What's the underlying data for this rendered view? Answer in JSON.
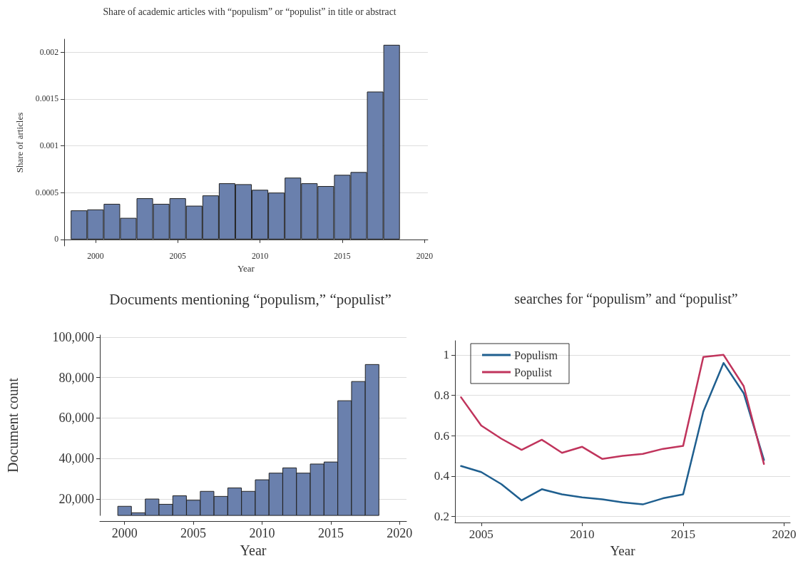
{
  "chart_data": [
    {
      "type": "bar",
      "title": "Share of academic articles with “populism” or “populist” in title or abstract",
      "xlabel": "Year",
      "ylabel": "Share of articles",
      "x": [
        1999,
        2000,
        2001,
        2002,
        2003,
        2004,
        2005,
        2006,
        2007,
        2008,
        2009,
        2010,
        2011,
        2012,
        2013,
        2014,
        2015,
        2016,
        2017,
        2018
      ],
      "values": [
        0.00031,
        0.00032,
        0.00038,
        0.00023,
        0.00044,
        0.00038,
        0.00044,
        0.00036,
        0.00047,
        0.0006,
        0.00059,
        0.00053,
        0.0005,
        0.00066,
        0.0006,
        0.00057,
        0.00069,
        0.00072,
        0.00158,
        0.00208
      ],
      "color": "#6a80ad",
      "xlim": [
        1998.1,
        2020.2
      ],
      "xticks": [
        2000,
        2005,
        2010,
        2015,
        2020
      ],
      "ylim": [
        -7e-05,
        0.00214
      ],
      "yticks": [
        0,
        0.0005,
        0.001,
        0.0015,
        0.002
      ],
      "grid": "y"
    },
    {
      "type": "bar",
      "title": "Documents mentioning “populism,” “populist”",
      "xlabel": "Year",
      "ylabel": "Document count",
      "x": [
        2000,
        2001,
        2002,
        2003,
        2004,
        2005,
        2006,
        2007,
        2008,
        2009,
        2010,
        2011,
        2012,
        2013,
        2014,
        2015,
        2016,
        2017,
        2018
      ],
      "values": [
        16500,
        13300,
        20100,
        17500,
        21700,
        19500,
        23900,
        21400,
        25600,
        23900,
        29600,
        32900,
        35500,
        32900,
        37400,
        38400,
        68700,
        78200,
        86600
      ],
      "color": "#6a80ad",
      "xlim": [
        1998.2,
        2020.5
      ],
      "xticks": [
        2000,
        2005,
        2010,
        2015,
        2020
      ],
      "ylim": [
        11800,
        101000
      ],
      "yticks": [
        {
          "value": 20000,
          "label": "20,000"
        },
        {
          "value": 40000,
          "label": "40,000"
        },
        {
          "value": 60000,
          "label": "60,000"
        },
        {
          "value": 80000,
          "label": "80,000"
        },
        {
          "value": 100000,
          "label": "100,000"
        }
      ],
      "grid": "y"
    },
    {
      "type": "line",
      "title": "searches for “populism” and “populist”",
      "xlabel": "Year",
      "x": [
        2004,
        2005,
        2006,
        2007,
        2008,
        2009,
        2010,
        2011,
        2012,
        2013,
        2014,
        2015,
        2016,
        2017,
        2018,
        2019
      ],
      "series": [
        {
          "name": "Populism",
          "color": "#1f5f8f",
          "values": [
            0.45,
            0.42,
            0.36,
            0.28,
            0.335,
            0.31,
            0.295,
            0.285,
            0.27,
            0.26,
            0.29,
            0.31,
            0.72,
            0.96,
            0.81,
            0.48
          ]
        },
        {
          "name": "Populist",
          "color": "#c0345c",
          "values": [
            0.79,
            0.65,
            0.585,
            0.53,
            0.58,
            0.515,
            0.545,
            0.485,
            0.5,
            0.51,
            0.535,
            0.55,
            0.99,
            1.0,
            0.845,
            0.46
          ]
        }
      ],
      "xlim": [
        2003.7,
        2020.3
      ],
      "xticks": [
        2005,
        2010,
        2015,
        2020
      ],
      "ylim": [
        0.17,
        1.07
      ],
      "yticks": [
        0.2,
        0.4,
        0.6,
        0.8,
        1
      ],
      "grid": "y",
      "legend": "top left",
      "marker": "none",
      "line_style": "solid"
    }
  ]
}
